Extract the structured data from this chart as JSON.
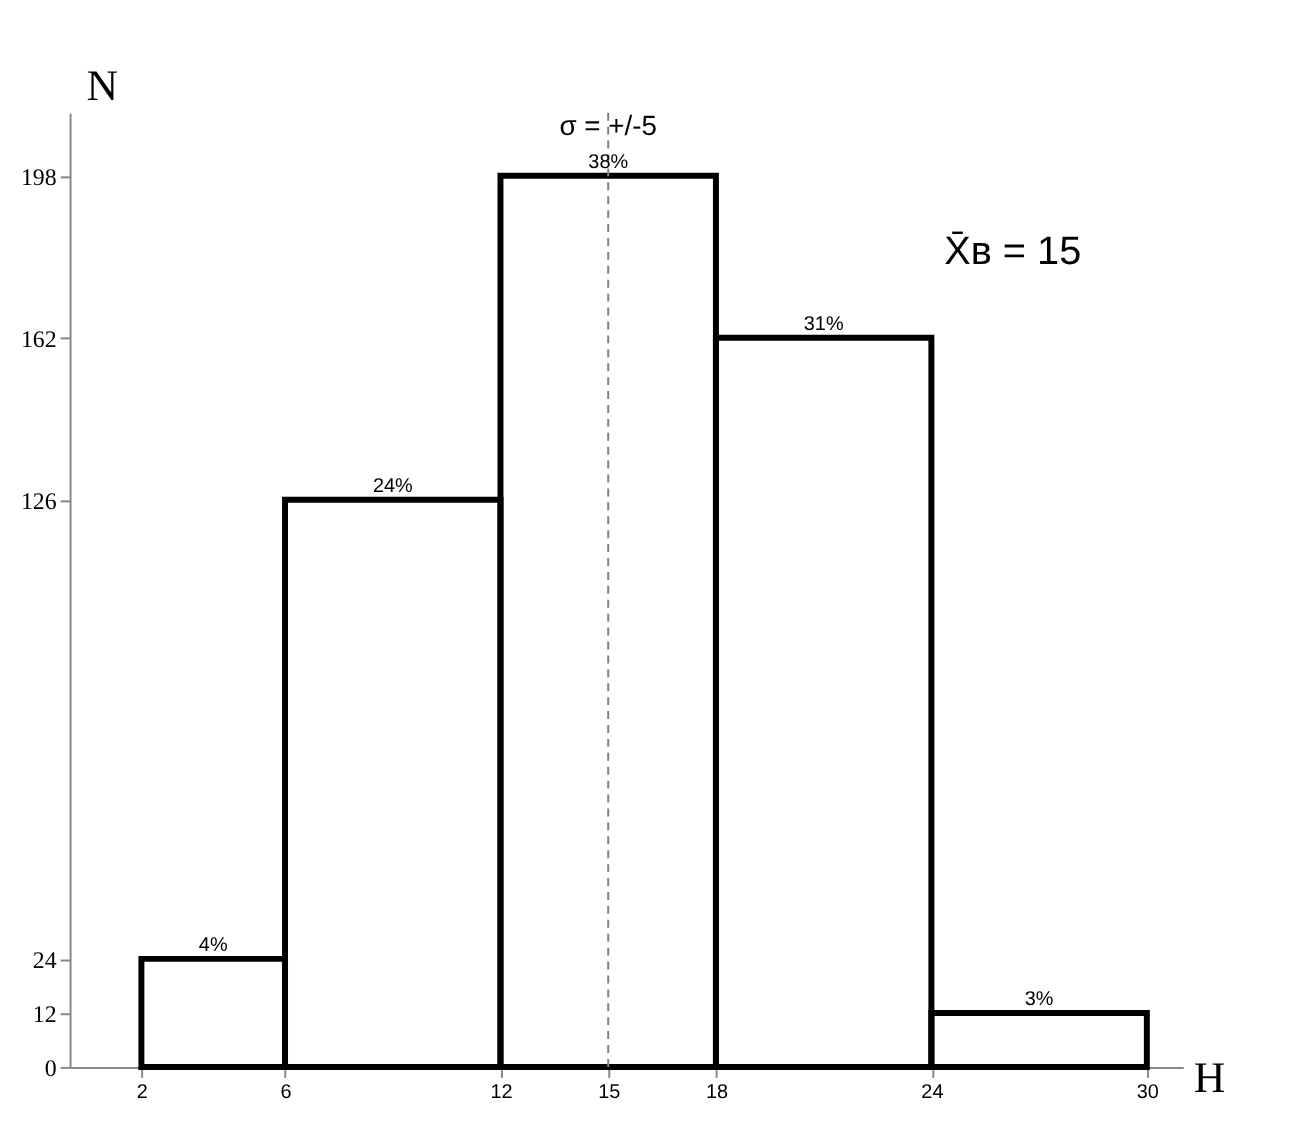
{
  "chart_data": {
    "type": "histogram",
    "xlabel": "H",
    "ylabel": "N",
    "bins": [
      2,
      6,
      12,
      18,
      24,
      30
    ],
    "values": [
      24,
      126,
      198,
      162,
      12
    ],
    "color": "#000000",
    "xlim": [
      0,
      31
    ],
    "xticks": [
      2,
      6,
      12,
      15,
      18,
      24,
      30
    ],
    "ylim": [
      0,
      212
    ],
    "yticks": [
      0,
      12,
      24,
      126,
      162,
      198
    ],
    "ref_lines": [
      {
        "axis": "x",
        "value": 15,
        "label": null,
        "color": "#808080",
        "line_style": "dashed"
      }
    ],
    "annotations": [
      {
        "text": "σ = +/-5",
        "x": 15,
        "y": 207
      },
      "X̄в = 15",
      {
        "text": "4%",
        "x": 4,
        "y": 24
      },
      {
        "text": "24%",
        "x": 9,
        "y": 126
      },
      {
        "text": "38%",
        "x": 15,
        "y": 198
      },
      {
        "text": "31%",
        "x": 21,
        "y": 162
      },
      {
        "text": "3%",
        "x": 27,
        "y": 12
      }
    ],
    "grid": false
  }
}
